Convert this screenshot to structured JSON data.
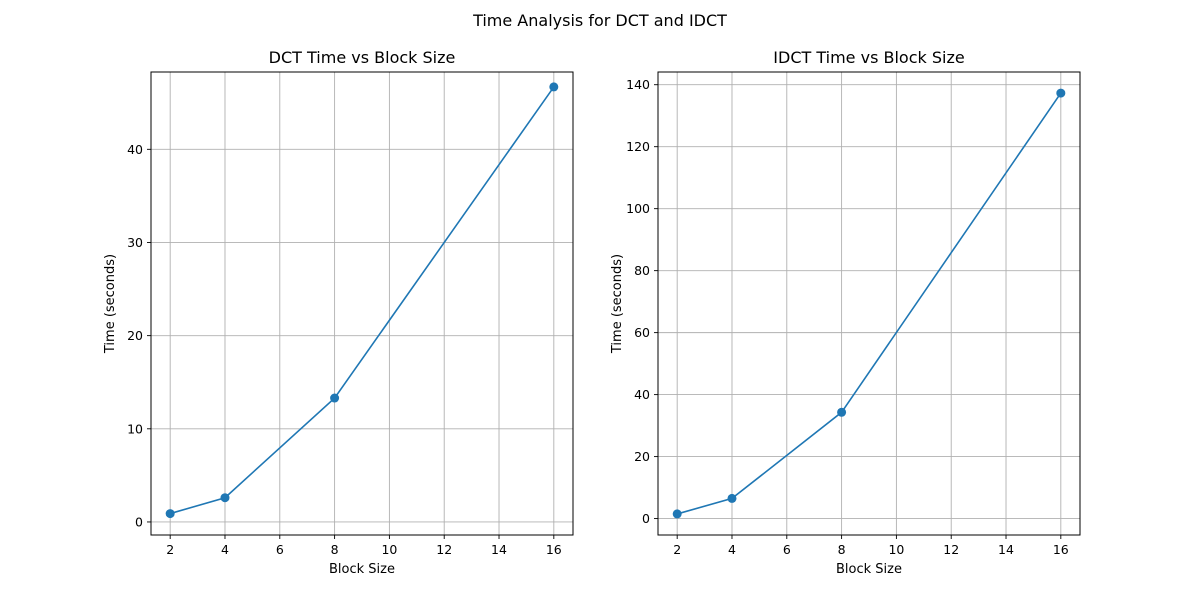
{
  "figure": {
    "suptitle": "Time Analysis for DCT and IDCT"
  },
  "colors": {
    "series": "#1f77b4",
    "grid": "#b0b0b0",
    "axes": "#000000"
  },
  "chart_data": [
    {
      "type": "line",
      "title": "DCT Time vs Block Size",
      "xlabel": "Block Size",
      "ylabel": "Time (seconds)",
      "xlim": [
        1.3,
        16.7
      ],
      "ylim": [
        -1.4,
        48.3
      ],
      "xticks": [
        2,
        4,
        6,
        8,
        10,
        12,
        14,
        16
      ],
      "yticks": [
        0,
        10,
        20,
        30,
        40
      ],
      "grid": true,
      "marker": "circle",
      "series": [
        {
          "x": [
            2,
            4,
            8,
            16
          ],
          "y": [
            0.9,
            2.6,
            13.3,
            46.7
          ]
        }
      ]
    },
    {
      "type": "line",
      "title": "IDCT Time vs Block Size",
      "xlabel": "Block Size",
      "ylabel": "Time (seconds)",
      "xlim": [
        1.3,
        16.7
      ],
      "ylim": [
        -5.3,
        144.1
      ],
      "xticks": [
        2,
        4,
        6,
        8,
        10,
        12,
        14,
        16
      ],
      "yticks": [
        0,
        20,
        40,
        60,
        80,
        100,
        120,
        140
      ],
      "grid": true,
      "marker": "circle",
      "series": [
        {
          "x": [
            2,
            4,
            8,
            16
          ],
          "y": [
            1.5,
            6.5,
            34.3,
            137.3
          ]
        }
      ]
    }
  ]
}
